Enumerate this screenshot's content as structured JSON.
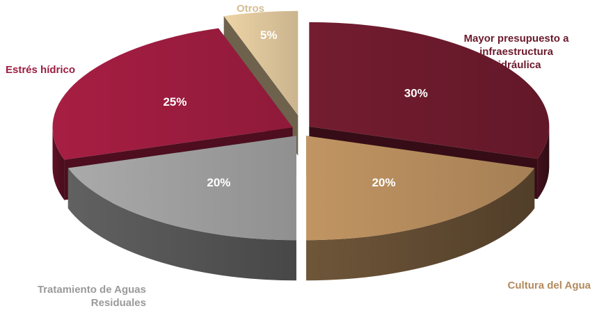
{
  "chart_data": {
    "type": "pie",
    "title": "",
    "slices": [
      {
        "label": "Mayor presupuesto a\ninfraestructura\nhidráulica",
        "value": 30,
        "value_label": "30%",
        "color": "#6b1a2c",
        "label_color": "#6b1a2c"
      },
      {
        "label": "Cultura del Agua",
        "value": 20,
        "value_label": "20%",
        "color": "#b38a5c",
        "label_color": "#b38a5c"
      },
      {
        "label": "Tratamiento de Aguas\nResiduales",
        "value": 20,
        "value_label": "20%",
        "color": "#9d9d9d",
        "label_color": "#9a9a9a"
      },
      {
        "label": "Estrés hídrico",
        "value": 25,
        "value_label": "25%",
        "color": "#9b1c3e",
        "label_color": "#9b1c3e"
      },
      {
        "label": "Otros",
        "value": 5,
        "value_label": "5%",
        "color": "#dcc49a",
        "label_color": "#d5bd93"
      }
    ],
    "exploded": true,
    "style": "3d"
  }
}
